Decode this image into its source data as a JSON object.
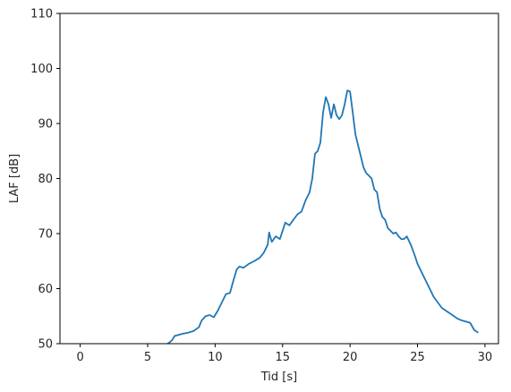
{
  "chart_data": {
    "type": "line",
    "title": "",
    "xlabel": "Tid [s]",
    "ylabel": "LAF [dB]",
    "xlim": [
      -1.5,
      31
    ],
    "ylim": [
      50,
      110
    ],
    "xticks": [
      0,
      5,
      10,
      15,
      20,
      25,
      30
    ],
    "yticks": [
      50,
      60,
      70,
      80,
      90,
      100,
      110
    ],
    "grid": false,
    "line_color": "#1f77b4",
    "series": [
      {
        "x": [
          6.2,
          6.5,
          6.8,
          7.0,
          7.3,
          7.6,
          8.0,
          8.4,
          8.8,
          9.0,
          9.3,
          9.6,
          9.9,
          10.2,
          10.5,
          10.8,
          11.1,
          11.3,
          11.6,
          11.8,
          12.1,
          12.5,
          12.9,
          13.3,
          13.6,
          13.9,
          14.0,
          14.2,
          14.5,
          14.8,
          15.0,
          15.2,
          15.5,
          15.8,
          16.1,
          16.4,
          16.7,
          17.0,
          17.2,
          17.4,
          17.6,
          17.8,
          18.0,
          18.2,
          18.4,
          18.6,
          18.8,
          19.0,
          19.2,
          19.4,
          19.6,
          19.8,
          20.0,
          20.2,
          20.4,
          20.6,
          20.8,
          21.0,
          21.2,
          21.4,
          21.6,
          21.8,
          22.0,
          22.2,
          22.4,
          22.6,
          22.8,
          23.0,
          23.2,
          23.4,
          23.6,
          23.8,
          24.0,
          24.2,
          24.5,
          24.8,
          25.0,
          25.3,
          25.6,
          25.9,
          26.2,
          26.5,
          26.8,
          27.1,
          27.4,
          27.7,
          28.0,
          28.3,
          28.6,
          28.9,
          29.2,
          29.5
        ],
        "y": [
          49.8,
          50.0,
          50.6,
          51.4,
          51.6,
          51.8,
          52.0,
          52.3,
          53.0,
          54.2,
          55.0,
          55.2,
          54.8,
          56.0,
          57.5,
          59.0,
          59.2,
          61.0,
          63.5,
          64.0,
          63.8,
          64.5,
          65.0,
          65.6,
          66.5,
          68.0,
          70.2,
          68.5,
          69.5,
          69.0,
          70.5,
          72.0,
          71.5,
          72.5,
          73.5,
          74.0,
          76.0,
          77.5,
          80.0,
          84.5,
          85.0,
          86.5,
          92.0,
          94.8,
          93.5,
          91.0,
          93.5,
          91.5,
          90.8,
          91.5,
          93.5,
          96.0,
          95.8,
          92.0,
          88.0,
          86.0,
          84.0,
          82.0,
          81.0,
          80.5,
          80.0,
          78.0,
          77.5,
          74.5,
          73.0,
          72.5,
          71.0,
          70.5,
          70.0,
          70.2,
          69.5,
          69.0,
          69.0,
          69.5,
          68.0,
          66.0,
          64.5,
          63.0,
          61.5,
          60.0,
          58.5,
          57.5,
          56.5,
          56.0,
          55.5,
          55.0,
          54.5,
          54.2,
          54.0,
          53.8,
          52.5,
          52.0
        ]
      }
    ]
  }
}
